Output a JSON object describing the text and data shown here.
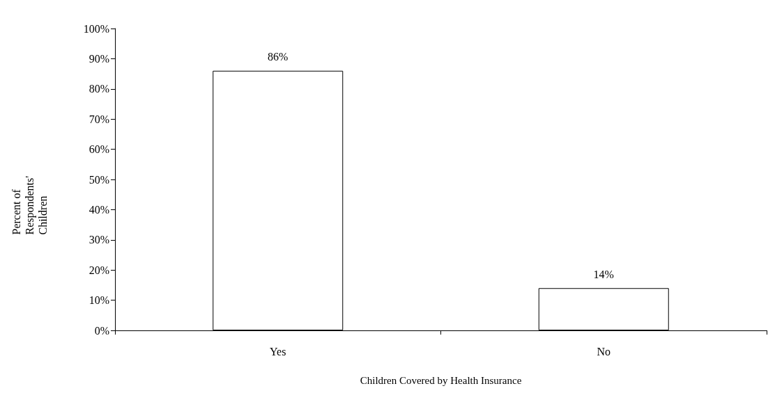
{
  "chart_data": {
    "type": "bar",
    "xlabel": "Children Covered by Health Insurance",
    "ylabel": "Percent of Respondents' Children",
    "categories": [
      "Yes",
      "No"
    ],
    "values": [
      86,
      14
    ],
    "color": "#ffffff",
    "value_labels": [
      "86%",
      "14%"
    ],
    "ylim": [
      0,
      100
    ],
    "yticks": [
      {
        "value": 0,
        "label": "0%"
      },
      {
        "value": 10,
        "label": "10%"
      },
      {
        "value": 20,
        "label": "20%"
      },
      {
        "value": 30,
        "label": "30%"
      },
      {
        "value": 40,
        "label": "40%"
      },
      {
        "value": 50,
        "label": "50%"
      },
      {
        "value": 60,
        "label": "60%"
      },
      {
        "value": 70,
        "label": "70%"
      },
      {
        "value": 80,
        "label": "80%"
      },
      {
        "value": 90,
        "label": "90%"
      },
      {
        "value": 100,
        "label": "100%"
      }
    ],
    "grid": false
  }
}
